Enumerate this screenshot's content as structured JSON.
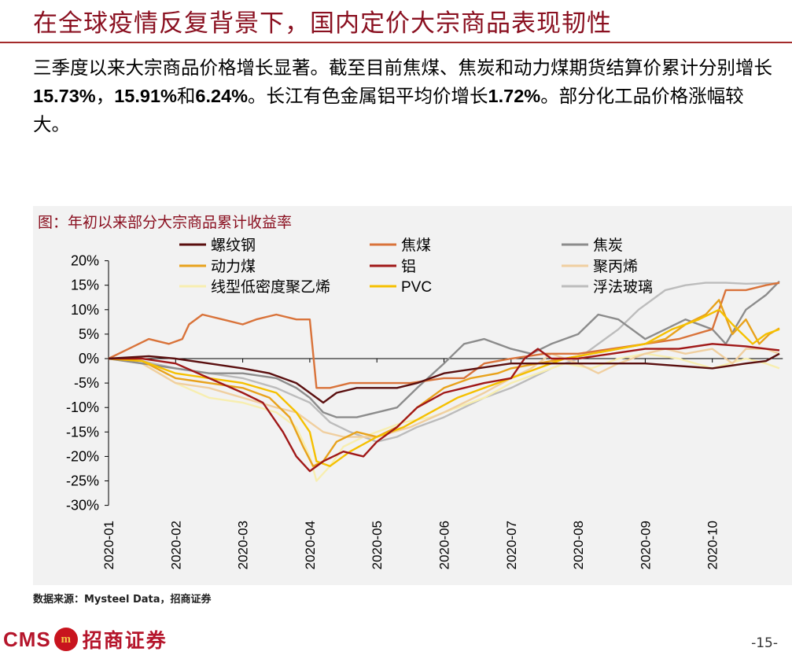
{
  "header": {
    "title": "在全球疫情反复背景下，国内定价大宗商品表现韧性"
  },
  "body": {
    "p1": "三季度以来大宗商品价格增长显著。截至目前焦煤、焦炭和动力煤期货结算价累计分别增长",
    "v1": "15.73%",
    "s1": "，",
    "v2": "15.91%",
    "s2": "和",
    "v3": "6.24%",
    "p2": "。长江有色金属铝平均价增长",
    "v4": "1.72%",
    "p3": "。部分化工品价格涨幅较大。"
  },
  "footer": {
    "source": "数据来源：Mysteel Data，招商证券",
    "logo_text": "CMS",
    "logo_cn": "招商证券",
    "logo_mark": "m",
    "page": "-15-"
  },
  "colors": {
    "title": "#8a1020",
    "rule": "#a32a2a",
    "panel": "#f2f2f2",
    "rebar": "#5a0f0f",
    "coking_coal": "#d9733a",
    "coke": "#8c8c8c",
    "thermal_coal": "#e8a21c",
    "aluminum": "#a01818",
    "pp": "#f0cfa0",
    "lldpe": "#f7eeb0",
    "pvc": "#f5c000",
    "glass": "#bcbcbc"
  },
  "chart_data": {
    "type": "line",
    "title": "图：年初以来部分大宗商品累计收益率",
    "x_ticks": [
      "2020-01",
      "2020-02",
      "2020-03",
      "2020-04",
      "2020-05",
      "2020-06",
      "2020-07",
      "2020-08",
      "2020-09",
      "2020-10"
    ],
    "y_ticks": [
      "20%",
      "15%",
      "10%",
      "5%",
      "0%",
      "-5%",
      "-10%",
      "-15%",
      "-20%",
      "-25%",
      "-30%"
    ],
    "ylim": [
      -30,
      20
    ],
    "x_unit": "months since 2020-01-01",
    "series": [
      {
        "key": "rebar",
        "name": "螺纹钢",
        "color_key": "rebar",
        "points": [
          [
            0,
            0
          ],
          [
            0.6,
            0.5
          ],
          [
            1,
            0
          ],
          [
            1.5,
            -1
          ],
          [
            2,
            -2
          ],
          [
            2.4,
            -3
          ],
          [
            2.8,
            -5
          ],
          [
            3.0,
            -7
          ],
          [
            3.2,
            -9
          ],
          [
            3.4,
            -7
          ],
          [
            3.7,
            -6
          ],
          [
            4,
            -6
          ],
          [
            4.3,
            -6
          ],
          [
            4.6,
            -5
          ],
          [
            5,
            -3
          ],
          [
            5.5,
            -2
          ],
          [
            6,
            -1
          ],
          [
            6.5,
            -1
          ],
          [
            7,
            -1
          ],
          [
            7.5,
            -1
          ],
          [
            8,
            -1
          ],
          [
            8.5,
            -1.5
          ],
          [
            9,
            -2
          ],
          [
            9.5,
            -1
          ],
          [
            9.8,
            -0.5
          ],
          [
            10.0,
            1
          ]
        ]
      },
      {
        "key": "coking_coal",
        "name": "焦煤",
        "color_key": "coking_coal",
        "points": [
          [
            0,
            0
          ],
          [
            0.3,
            2
          ],
          [
            0.6,
            4
          ],
          [
            0.9,
            3
          ],
          [
            1.1,
            4
          ],
          [
            1.2,
            7
          ],
          [
            1.4,
            9
          ],
          [
            1.7,
            8
          ],
          [
            2.0,
            7
          ],
          [
            2.2,
            8
          ],
          [
            2.5,
            9
          ],
          [
            2.8,
            8
          ],
          [
            3.0,
            8
          ],
          [
            3.1,
            -6
          ],
          [
            3.3,
            -6
          ],
          [
            3.6,
            -5
          ],
          [
            4,
            -5
          ],
          [
            4.5,
            -5
          ],
          [
            5,
            -4
          ],
          [
            5.3,
            -4
          ],
          [
            5.6,
            -1
          ],
          [
            6,
            0
          ],
          [
            6.5,
            1
          ],
          [
            7,
            1
          ],
          [
            7.5,
            2
          ],
          [
            8,
            3
          ],
          [
            8.5,
            4
          ],
          [
            9,
            6
          ],
          [
            9.2,
            14
          ],
          [
            9.5,
            14
          ],
          [
            9.8,
            15
          ],
          [
            10.0,
            15.5
          ]
        ]
      },
      {
        "key": "coke",
        "name": "焦炭",
        "color_key": "coke",
        "points": [
          [
            0,
            0
          ],
          [
            0.5,
            -1
          ],
          [
            1,
            -2
          ],
          [
            1.5,
            -3
          ],
          [
            2,
            -3
          ],
          [
            2.5,
            -4
          ],
          [
            2.8,
            -6
          ],
          [
            3.0,
            -8
          ],
          [
            3.2,
            -11
          ],
          [
            3.4,
            -12
          ],
          [
            3.7,
            -12
          ],
          [
            4,
            -11
          ],
          [
            4.3,
            -10
          ],
          [
            4.6,
            -6
          ],
          [
            5,
            -1
          ],
          [
            5.3,
            3
          ],
          [
            5.6,
            4
          ],
          [
            6,
            2
          ],
          [
            6.3,
            1
          ],
          [
            6.6,
            3
          ],
          [
            7,
            5
          ],
          [
            7.3,
            9
          ],
          [
            7.6,
            8
          ],
          [
            8,
            4
          ],
          [
            8.3,
            6
          ],
          [
            8.6,
            8
          ],
          [
            9,
            6
          ],
          [
            9.2,
            3
          ],
          [
            9.5,
            10
          ],
          [
            9.8,
            13
          ],
          [
            10.0,
            15.8
          ]
        ]
      },
      {
        "key": "thermal_coal",
        "name": "动力煤",
        "color_key": "thermal_coal",
        "points": [
          [
            0,
            0
          ],
          [
            0.5,
            -0.5
          ],
          [
            1,
            -4
          ],
          [
            1.5,
            -5
          ],
          [
            2,
            -6
          ],
          [
            2.4,
            -8
          ],
          [
            2.7,
            -12
          ],
          [
            2.9,
            -18
          ],
          [
            3.05,
            -22
          ],
          [
            3.2,
            -21
          ],
          [
            3.4,
            -17
          ],
          [
            3.7,
            -15
          ],
          [
            4,
            -16
          ],
          [
            4.3,
            -14
          ],
          [
            4.6,
            -10
          ],
          [
            5,
            -6
          ],
          [
            5.4,
            -4
          ],
          [
            5.8,
            -3
          ],
          [
            6,
            -2
          ],
          [
            6.4,
            -1
          ],
          [
            6.8,
            0
          ],
          [
            7.2,
            1
          ],
          [
            7.6,
            2
          ],
          [
            8,
            3
          ],
          [
            8.3,
            4
          ],
          [
            8.6,
            7
          ],
          [
            8.9,
            9
          ],
          [
            9.1,
            12
          ],
          [
            9.3,
            5
          ],
          [
            9.5,
            8
          ],
          [
            9.7,
            3
          ],
          [
            9.85,
            5
          ],
          [
            10.0,
            6.2
          ]
        ]
      },
      {
        "key": "aluminum",
        "name": "铝",
        "color_key": "aluminum",
        "points": [
          [
            0,
            0
          ],
          [
            0.5,
            0
          ],
          [
            1,
            -1
          ],
          [
            1.5,
            -4
          ],
          [
            2,
            -7
          ],
          [
            2.3,
            -9
          ],
          [
            2.6,
            -15
          ],
          [
            2.8,
            -20
          ],
          [
            3.0,
            -23
          ],
          [
            3.2,
            -21
          ],
          [
            3.5,
            -19
          ],
          [
            3.8,
            -20
          ],
          [
            4,
            -17
          ],
          [
            4.3,
            -14
          ],
          [
            4.6,
            -10
          ],
          [
            5,
            -7
          ],
          [
            5.3,
            -6
          ],
          [
            5.6,
            -5
          ],
          [
            6,
            -4
          ],
          [
            6.2,
            0
          ],
          [
            6.4,
            2
          ],
          [
            6.6,
            0
          ],
          [
            7,
            0
          ],
          [
            7.5,
            1
          ],
          [
            8,
            2
          ],
          [
            8.5,
            2
          ],
          [
            9,
            3
          ],
          [
            9.5,
            2.5
          ],
          [
            9.8,
            2
          ],
          [
            10.0,
            1.7
          ]
        ]
      },
      {
        "key": "pp",
        "name": "聚丙烯",
        "color_key": "pp",
        "points": [
          [
            0,
            0
          ],
          [
            0.5,
            -1
          ],
          [
            1,
            -5
          ],
          [
            1.5,
            -6
          ],
          [
            2,
            -8
          ],
          [
            2.5,
            -10
          ],
          [
            2.8,
            -11
          ],
          [
            3.0,
            -13
          ],
          [
            3.2,
            -15
          ],
          [
            3.5,
            -16
          ],
          [
            4,
            -16
          ],
          [
            4.5,
            -14
          ],
          [
            5,
            -11
          ],
          [
            5.3,
            -9
          ],
          [
            5.6,
            -7
          ],
          [
            6,
            -4
          ],
          [
            6.3,
            -2
          ],
          [
            6.6,
            1
          ],
          [
            7,
            -1
          ],
          [
            7.3,
            -3
          ],
          [
            7.6,
            -1
          ],
          [
            8,
            1
          ],
          [
            8.3,
            2
          ],
          [
            8.6,
            1
          ],
          [
            9,
            2
          ],
          [
            9.3,
            -1
          ],
          [
            9.5,
            2
          ],
          [
            9.8,
            2
          ],
          [
            10.0,
            1
          ]
        ]
      },
      {
        "key": "lldpe",
        "name": "线型低密度聚乙烯",
        "color_key": "lldpe",
        "points": [
          [
            0,
            0
          ],
          [
            0.5,
            -1
          ],
          [
            1,
            -5
          ],
          [
            1.5,
            -8
          ],
          [
            2,
            -9
          ],
          [
            2.5,
            -11
          ],
          [
            2.8,
            -14
          ],
          [
            3.0,
            -20
          ],
          [
            3.1,
            -25
          ],
          [
            3.3,
            -22
          ],
          [
            3.5,
            -18
          ],
          [
            3.8,
            -16
          ],
          [
            4,
            -15
          ],
          [
            4.4,
            -13
          ],
          [
            4.8,
            -12
          ],
          [
            5.2,
            -10
          ],
          [
            5.6,
            -8
          ],
          [
            6,
            -5
          ],
          [
            6.4,
            -3
          ],
          [
            6.8,
            -1
          ],
          [
            7.2,
            -2
          ],
          [
            7.6,
            0
          ],
          [
            8,
            1
          ],
          [
            8.5,
            0
          ],
          [
            9,
            -2
          ],
          [
            9.5,
            0
          ],
          [
            9.8,
            -1
          ],
          [
            10.0,
            -2
          ]
        ]
      },
      {
        "key": "pvc",
        "name": "PVC",
        "color_key": "pvc",
        "points": [
          [
            0,
            0
          ],
          [
            0.5,
            -0.5
          ],
          [
            1,
            -3
          ],
          [
            1.5,
            -4
          ],
          [
            2,
            -5
          ],
          [
            2.5,
            -7
          ],
          [
            2.8,
            -11
          ],
          [
            3.0,
            -15
          ],
          [
            3.1,
            -21
          ],
          [
            3.3,
            -22
          ],
          [
            3.6,
            -19
          ],
          [
            4,
            -16
          ],
          [
            4.4,
            -14
          ],
          [
            4.8,
            -11
          ],
          [
            5.2,
            -8
          ],
          [
            5.6,
            -6
          ],
          [
            6,
            -4
          ],
          [
            6.4,
            -2
          ],
          [
            6.8,
            0
          ],
          [
            7.2,
            1
          ],
          [
            7.6,
            2
          ],
          [
            8,
            3
          ],
          [
            8.4,
            6
          ],
          [
            8.8,
            8
          ],
          [
            9.1,
            10
          ],
          [
            9.3,
            7
          ],
          [
            9.6,
            3
          ],
          [
            9.8,
            5
          ],
          [
            10.0,
            6
          ]
        ]
      },
      {
        "key": "glass",
        "name": "浮法玻璃",
        "color_key": "glass",
        "points": [
          [
            0,
            0
          ],
          [
            0.5,
            -0.5
          ],
          [
            1,
            -2
          ],
          [
            1.5,
            -3
          ],
          [
            2,
            -4
          ],
          [
            2.5,
            -6
          ],
          [
            3.0,
            -9
          ],
          [
            3.3,
            -13
          ],
          [
            3.6,
            -15
          ],
          [
            4,
            -17
          ],
          [
            4.3,
            -16
          ],
          [
            4.6,
            -14
          ],
          [
            5,
            -12
          ],
          [
            5.3,
            -10
          ],
          [
            5.6,
            -8
          ],
          [
            6,
            -6
          ],
          [
            6.3,
            -4
          ],
          [
            6.6,
            -2
          ],
          [
            7,
            0
          ],
          [
            7.3,
            3
          ],
          [
            7.6,
            6
          ],
          [
            7.9,
            10
          ],
          [
            8.1,
            12
          ],
          [
            8.3,
            14
          ],
          [
            8.6,
            15
          ],
          [
            8.9,
            15.5
          ],
          [
            9.2,
            15.5
          ],
          [
            9.5,
            15.3
          ],
          [
            9.8,
            15.4
          ],
          [
            10.0,
            15.4
          ]
        ]
      }
    ],
    "legend_order": [
      "rebar",
      "coking_coal",
      "coke",
      "thermal_coal",
      "aluminum",
      "pp",
      "lldpe",
      "pvc",
      "glass"
    ],
    "grid": false,
    "legend_position": "top"
  }
}
